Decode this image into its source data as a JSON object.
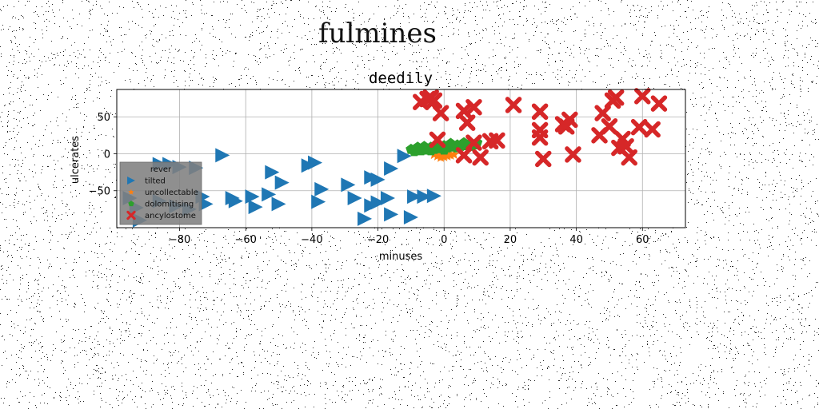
{
  "figure": {
    "suptitle": "fulmines"
  },
  "chart_data": {
    "type": "scatter",
    "title": "deedily",
    "xlabel": "minuses",
    "ylabel": "ulcerates",
    "xlim": [
      -99,
      73
    ],
    "ylim": [
      -100,
      87
    ],
    "xticks": [
      -80,
      -60,
      -40,
      -20,
      0,
      20,
      40,
      60
    ],
    "yticks": [
      -50,
      0,
      50
    ],
    "grid": true,
    "legend": {
      "placement": "lower-left",
      "title": "rever",
      "background": "#808080"
    },
    "series": [
      {
        "name": "tilted",
        "marker": "triangle-right",
        "color": "#1f77b4",
        "points": [
          [
            -67,
            -2
          ],
          [
            -83,
            -14
          ],
          [
            -86,
            -14
          ],
          [
            -80,
            -18
          ],
          [
            -75,
            -19
          ],
          [
            -52,
            -25
          ],
          [
            -39,
            -12
          ],
          [
            -41,
            -16
          ],
          [
            -16,
            -20
          ],
          [
            -12,
            -3
          ],
          [
            -49,
            -39
          ],
          [
            -22,
            -32
          ],
          [
            -20,
            -35
          ],
          [
            -29,
            -42
          ],
          [
            -37,
            -48
          ],
          [
            -95,
            -60
          ],
          [
            -93,
            -73
          ],
          [
            -86,
            -64
          ],
          [
            -81,
            -71
          ],
          [
            -77,
            -75
          ],
          [
            -73,
            -58
          ],
          [
            -72,
            -68
          ],
          [
            -64,
            -60
          ],
          [
            -63,
            -64
          ],
          [
            -58,
            -58
          ],
          [
            -57,
            -72
          ],
          [
            -53,
            -55
          ],
          [
            -50,
            -68
          ],
          [
            -38,
            -65
          ],
          [
            -27,
            -60
          ],
          [
            -22,
            -70
          ],
          [
            -20,
            -66
          ],
          [
            -17,
            -60
          ],
          [
            -9,
            -58
          ],
          [
            -6,
            -58
          ],
          [
            -3,
            -57
          ],
          [
            -16,
            -82
          ],
          [
            -24,
            -88
          ],
          [
            -10,
            -86
          ],
          [
            -92,
            -90
          ]
        ]
      },
      {
        "name": "uncollectable",
        "marker": "star",
        "color": "#ff7f0e",
        "points": [
          [
            -2,
            -3
          ],
          [
            -1,
            -2
          ],
          [
            0,
            -4
          ],
          [
            1,
            -3
          ],
          [
            -3,
            -1
          ],
          [
            0,
            -1
          ],
          [
            2,
            -2
          ],
          [
            -1,
            -5
          ],
          [
            1,
            0
          ],
          [
            3,
            -1
          ]
        ]
      },
      {
        "name": "dolomitising",
        "marker": "pentagon",
        "color": "#2ca02c",
        "points": [
          [
            -10,
            6
          ],
          [
            -8,
            7
          ],
          [
            -6,
            8
          ],
          [
            -4,
            9
          ],
          [
            -2,
            10
          ],
          [
            0,
            11
          ],
          [
            2,
            12
          ],
          [
            4,
            12
          ],
          [
            6,
            13
          ],
          [
            8,
            14
          ],
          [
            10,
            15
          ],
          [
            -9,
            3
          ],
          [
            -7,
            4
          ],
          [
            -5,
            5
          ],
          [
            -3,
            6
          ],
          [
            -1,
            7
          ],
          [
            1,
            8
          ],
          [
            3,
            9
          ],
          [
            5,
            10
          ],
          [
            7,
            11
          ],
          [
            9,
            12
          ],
          [
            -6,
            10
          ],
          [
            -2,
            13
          ],
          [
            2,
            14
          ],
          [
            6,
            15
          ],
          [
            -8,
            9
          ],
          [
            4,
            8
          ],
          [
            0,
            5
          ],
          [
            -4,
            4
          ],
          [
            8,
            10
          ]
        ]
      },
      {
        "name": "ancylostome",
        "marker": "x-filled",
        "color": "#d62728",
        "points": [
          [
            -7,
            70
          ],
          [
            -5,
            74
          ],
          [
            -4,
            76
          ],
          [
            -3,
            72
          ],
          [
            -1,
            55
          ],
          [
            6,
            58
          ],
          [
            7,
            42
          ],
          [
            9,
            63
          ],
          [
            21,
            66
          ],
          [
            29,
            57
          ],
          [
            29,
            32
          ],
          [
            29,
            22
          ],
          [
            30,
            -7
          ],
          [
            36,
            40
          ],
          [
            37,
            37
          ],
          [
            38,
            46
          ],
          [
            48,
            55
          ],
          [
            51,
            72
          ],
          [
            52,
            76
          ],
          [
            60,
            78
          ],
          [
            65,
            68
          ],
          [
            50,
            37
          ],
          [
            47,
            25
          ],
          [
            54,
            20
          ],
          [
            55,
            10
          ],
          [
            53,
            8
          ],
          [
            59,
            36
          ],
          [
            63,
            33
          ],
          [
            39,
            -1
          ],
          [
            56,
            -5
          ],
          [
            -2,
            19
          ],
          [
            6,
            -2
          ],
          [
            9,
            15
          ],
          [
            11,
            -5
          ],
          [
            14,
            17
          ],
          [
            16,
            18
          ]
        ]
      }
    ]
  }
}
